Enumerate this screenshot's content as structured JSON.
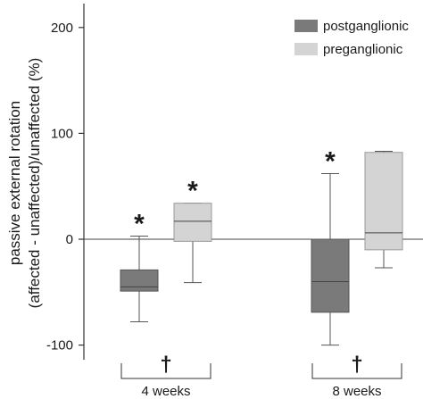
{
  "chart_data": {
    "type": "box",
    "ylabel_line1": "passive external rotation",
    "ylabel_line2": "(affected -  unaffected)/unaffected (%)",
    "ylim": [
      -110,
      225
    ],
    "yticks": [
      200,
      100,
      0,
      -100
    ],
    "ytick_labels": [
      "200",
      "100",
      "0",
      "-100"
    ],
    "grid": false,
    "legend_position": "top-right",
    "categories": [
      "4 weeks",
      "8 weeks"
    ],
    "series": [
      {
        "name": "postganglionic",
        "color": "#7a7a7a",
        "boxes": [
          {
            "category": "4 weeks",
            "min": -78,
            "q1": -49,
            "median": -45,
            "q3": -29,
            "max": 3
          },
          {
            "category": "8 weeks",
            "min": -100,
            "q1": -69,
            "median": -40,
            "q3": 0,
            "max": 62
          }
        ]
      },
      {
        "name": "preganglionic",
        "color": "#d4d4d4",
        "boxes": [
          {
            "category": "4 weeks",
            "min": -41,
            "q1": -2,
            "median": 17,
            "q3": 34,
            "max": 34
          },
          {
            "category": "8 weeks",
            "min": -27,
            "q1": -10,
            "median": 6,
            "q3": 82,
            "max": 83
          }
        ]
      }
    ],
    "annotations": [
      {
        "symbol": "*",
        "series": "postganglionic",
        "category": "4 weeks"
      },
      {
        "symbol": "*",
        "series": "preganglionic",
        "category": "4 weeks"
      },
      {
        "symbol": "*",
        "series": "postganglionic",
        "category": "8 weeks"
      },
      {
        "symbol": "†",
        "category": "4 weeks"
      },
      {
        "symbol": "†",
        "category": "8 weeks"
      }
    ]
  }
}
